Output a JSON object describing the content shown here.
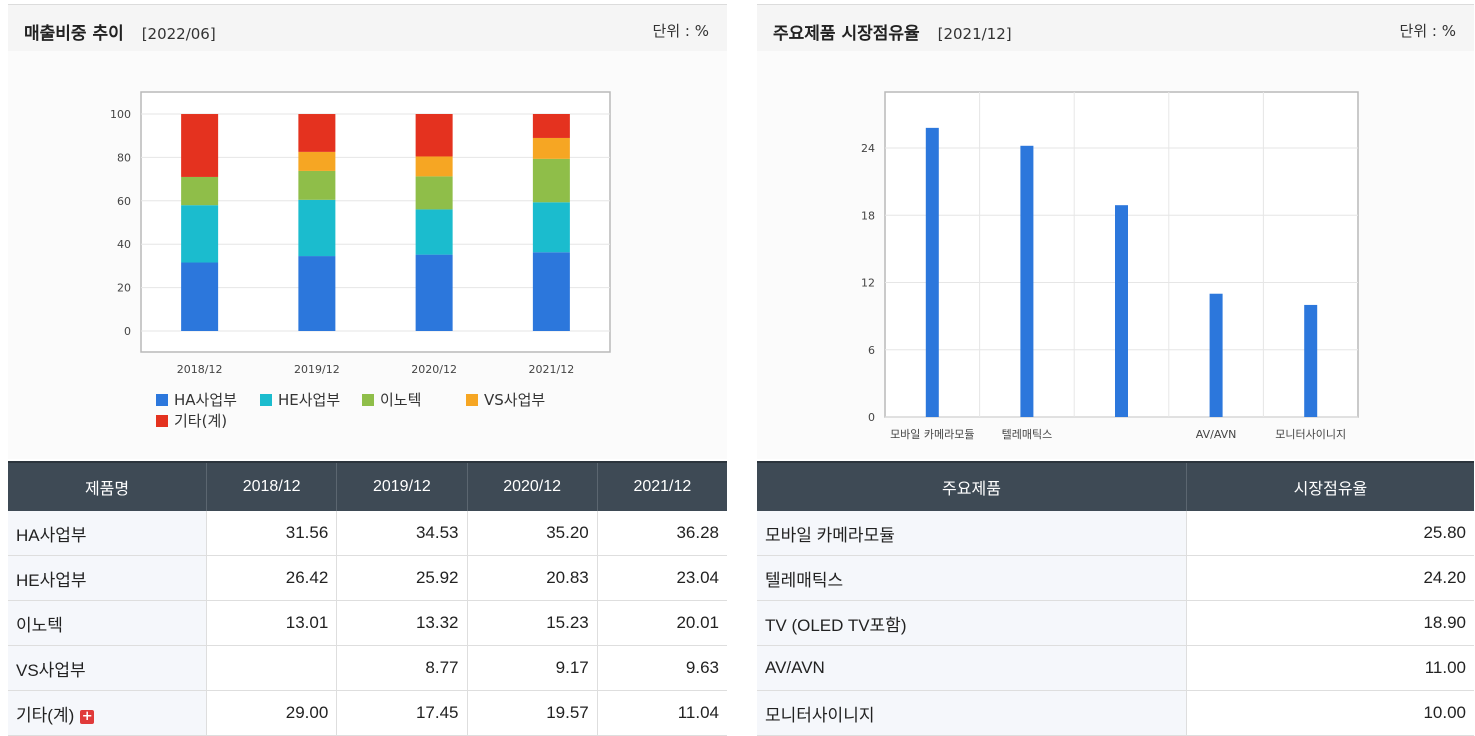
{
  "left": {
    "title": "매출비중 추이",
    "date": "[2022/06]",
    "unit": "단위 : %",
    "chart_data": {
      "type": "bar",
      "stacked": true,
      "categories": [
        "2018/12",
        "2019/12",
        "2020/12",
        "2021/12"
      ],
      "ylim": [
        0,
        100
      ],
      "yticks": [
        "0",
        "20",
        "40",
        "60",
        "80",
        "100"
      ],
      "legend": "bottom",
      "grid": true,
      "series": [
        {
          "name": "HA사업부",
          "values": [
            31.56,
            34.53,
            35.2,
            36.28
          ],
          "color": "#2c77dc"
        },
        {
          "name": "HE사업부",
          "values": [
            26.42,
            25.92,
            20.83,
            23.04
          ],
          "color": "#1bbcce"
        },
        {
          "name": "이노텍",
          "values": [
            13.01,
            13.32,
            15.23,
            20.01
          ],
          "color": "#8fbe49"
        },
        {
          "name": "VS사업부",
          "values": [
            0,
            8.77,
            9.17,
            9.63
          ],
          "color": "#f6a623"
        },
        {
          "name": "기타(계)",
          "values": [
            29.0,
            17.45,
            19.57,
            11.04
          ],
          "color": "#e4321f"
        }
      ]
    },
    "table": {
      "headers": [
        "제품명",
        "2018/12",
        "2019/12",
        "2020/12",
        "2021/12"
      ],
      "rows": [
        [
          "HA사업부",
          "31.56",
          "34.53",
          "35.20",
          "36.28"
        ],
        [
          "HE사업부",
          "26.42",
          "25.92",
          "20.83",
          "23.04"
        ],
        [
          "이노텍",
          "13.01",
          "13.32",
          "15.23",
          "20.01"
        ],
        [
          "VS사업부",
          "",
          "8.77",
          "9.17",
          "9.63"
        ],
        [
          "기타(계)",
          "29.00",
          "17.45",
          "19.57",
          "11.04"
        ]
      ],
      "expand_icon": "plus-icon",
      "expand_icon_glyph": "+"
    }
  },
  "right": {
    "title": "주요제품 시장점유율",
    "date": "[2021/12]",
    "unit": "단위 : %",
    "chart_data": {
      "type": "bar",
      "categories": [
        "모바일 카메라모듈",
        "텔레매틱스",
        "",
        "AV/AVN",
        "모니터사이니지"
      ],
      "values": [
        25.8,
        24.2,
        18.9,
        11.0,
        10.0
      ],
      "color": "#2c77dc",
      "ylim": [
        0,
        29
      ],
      "yticks": [
        "0",
        "6",
        "12",
        "18",
        "24"
      ],
      "grid": true
    },
    "table": {
      "headers": [
        "주요제품",
        "시장점유율"
      ],
      "rows": [
        [
          "모바일 카메라모듈",
          "25.80"
        ],
        [
          "텔레매틱스",
          "24.20"
        ],
        [
          "TV (OLED TV포함)",
          "18.90"
        ],
        [
          "AV/AVN",
          "11.00"
        ],
        [
          "모니터사이니지",
          "10.00"
        ]
      ]
    }
  }
}
